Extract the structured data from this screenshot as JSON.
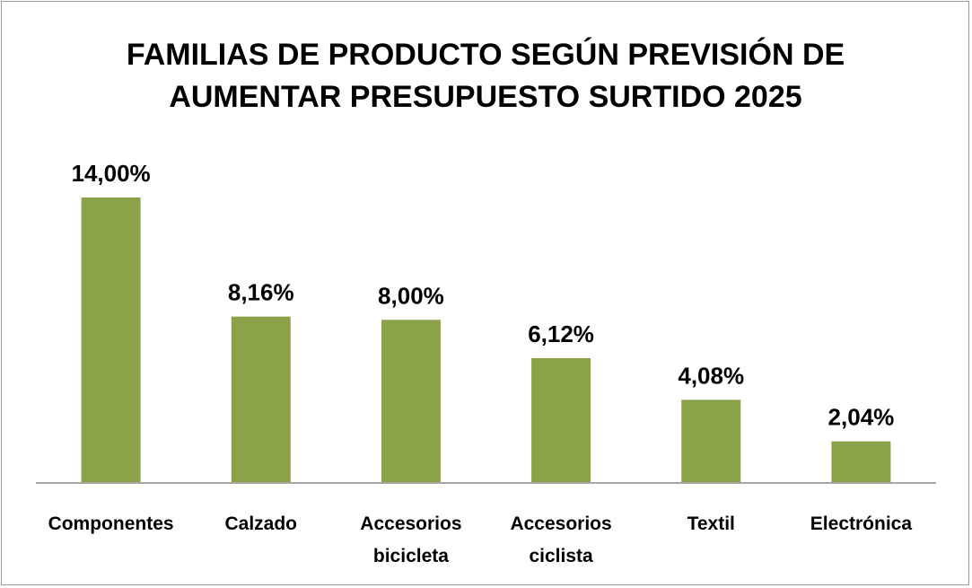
{
  "chart_data": {
    "type": "bar",
    "title_lines": [
      "FAMILIAS DE PRODUCTO SEGÚN PREVISIÓN DE",
      "AUMENTAR PRESUPUESTO SURTIDO 2025"
    ],
    "categories": [
      [
        "Componentes"
      ],
      [
        "Calzado"
      ],
      [
        "Accesorios",
        "bicicleta"
      ],
      [
        "Accesorios",
        "ciclista"
      ],
      [
        "Textil"
      ],
      [
        "Electrónica"
      ]
    ],
    "values": [
      14.0,
      8.16,
      8.0,
      6.12,
      4.08,
      2.04
    ],
    "value_labels": [
      "14,00%",
      "8,16%",
      "8,00%",
      "6,12%",
      "4,08%",
      "2,04%"
    ],
    "ylim": [
      0,
      15.7
    ],
    "grid": false,
    "legend": "none",
    "colors": {
      "bar": "#8ba249",
      "axis": "#a6a6a6",
      "text": "#000000"
    }
  }
}
